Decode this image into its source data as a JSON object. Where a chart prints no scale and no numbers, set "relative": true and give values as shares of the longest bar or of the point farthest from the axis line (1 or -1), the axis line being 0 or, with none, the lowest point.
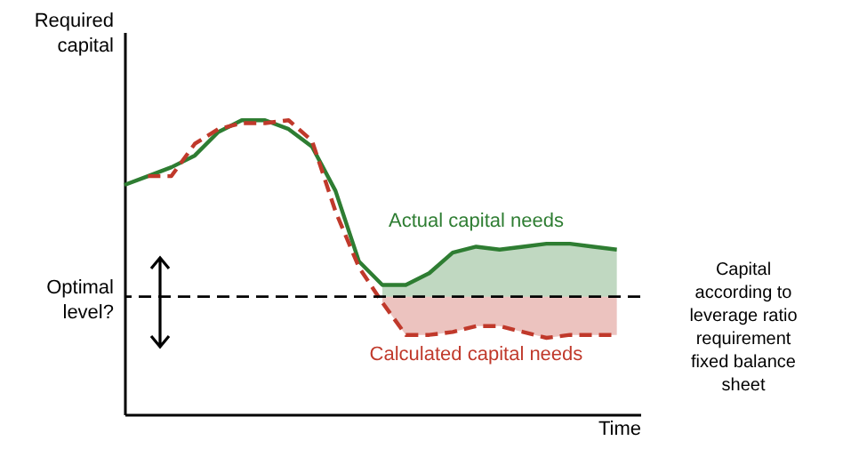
{
  "chart_data": {
    "type": "line",
    "relative": true,
    "xlabel": "Time",
    "ylabel": "Required capital",
    "categories": [
      null,
      null,
      null,
      null,
      null,
      null,
      null,
      null,
      null,
      null,
      null,
      null,
      null,
      null,
      null,
      null,
      null,
      null,
      null,
      null,
      null,
      null
    ],
    "series": [
      {
        "name": "Actual capital needs",
        "color": "#2e7d32",
        "line_style": "solid",
        "values": [
          0.78,
          0.81,
          0.84,
          0.88,
          0.96,
          1.0,
          1.0,
          0.97,
          0.91,
          0.76,
          0.52,
          0.44,
          0.44,
          0.48,
          0.55,
          0.57,
          0.56,
          0.57,
          0.58,
          0.58,
          0.57,
          0.56
        ],
        "lower": [
          null,
          null,
          null,
          null,
          null,
          null,
          null,
          null,
          null,
          null,
          null,
          0.4,
          0.4,
          0.4,
          0.4,
          0.4,
          0.4,
          0.4,
          0.4,
          0.4,
          0.4,
          0.4
        ],
        "upper": [
          null,
          null,
          null,
          null,
          null,
          null,
          null,
          null,
          null,
          null,
          null,
          0.44,
          0.44,
          0.48,
          0.55,
          0.57,
          0.56,
          0.57,
          0.58,
          0.58,
          0.57,
          0.56
        ]
      },
      {
        "name": "Calculated capital needs",
        "color": "#c0392b",
        "line_style": "dashed",
        "values": [
          null,
          0.81,
          0.81,
          0.92,
          0.97,
          0.99,
          0.99,
          1.0,
          0.93,
          0.69,
          0.5,
          0.38,
          0.27,
          0.27,
          0.28,
          0.3,
          0.3,
          0.28,
          0.26,
          0.27,
          0.27,
          0.27
        ],
        "lower": [
          null,
          null,
          null,
          null,
          null,
          null,
          null,
          null,
          null,
          null,
          null,
          0.38,
          0.27,
          0.27,
          0.28,
          0.3,
          0.3,
          0.28,
          0.26,
          0.27,
          0.27,
          0.27
        ],
        "upper": [
          null,
          null,
          null,
          null,
          null,
          null,
          null,
          null,
          null,
          null,
          null,
          0.4,
          0.4,
          0.4,
          0.4,
          0.4,
          0.4,
          0.4,
          0.4,
          0.4,
          0.4,
          0.4
        ]
      }
    ],
    "ref_lines": [
      {
        "axis": "y",
        "value": 0.4,
        "label": "Optimal level?",
        "color": "#000000",
        "line_style": "dashed"
      }
    ],
    "annotations": [
      "Capital according to leverage ratio requirement fixed balance sheet"
    ],
    "marker": "none"
  }
}
